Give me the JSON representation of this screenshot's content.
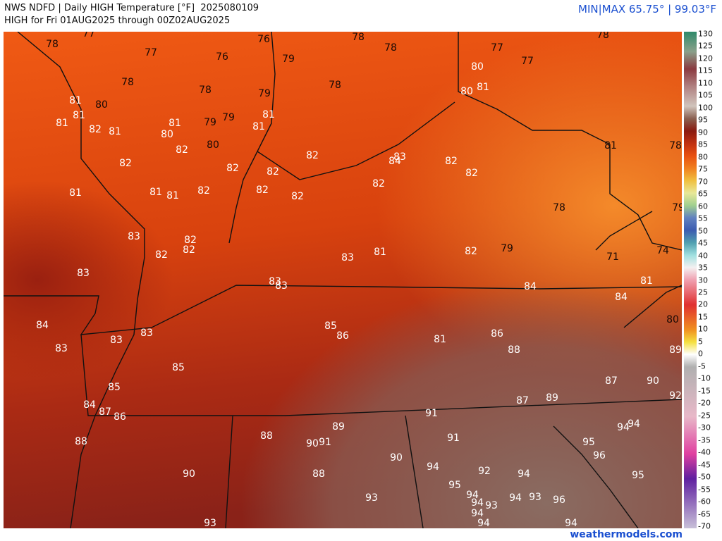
{
  "header": {
    "title": "NWS NDFD | Daily HIGH Temperature [°F]  2025080109",
    "subtitle": "HIGH for Fri 01AUG2025 through 00Z02AUG2025",
    "minmax": "MIN|MAX 65.75° | 99.03°F"
  },
  "map": {
    "labels": [
      78,
      77,
      77,
      76,
      76,
      79,
      78,
      78,
      78,
      77,
      77,
      80,
      80,
      81,
      78,
      78,
      79,
      78,
      81,
      80,
      81,
      81,
      82,
      81,
      80,
      81,
      79,
      79,
      81,
      81,
      80,
      82,
      82,
      82,
      84,
      83,
      82,
      82,
      82,
      82,
      82,
      82,
      82,
      81,
      81,
      81,
      82,
      81,
      78,
      78,
      79,
      83,
      82,
      82,
      82,
      83,
      81,
      82,
      79,
      71,
      74,
      83,
      83,
      83,
      84,
      81,
      84,
      80,
      84,
      85,
      86,
      83,
      83,
      83,
      81,
      86,
      88,
      89,
      85,
      87,
      90,
      85,
      92,
      84,
      87,
      86,
      87,
      89,
      91,
      94,
      94,
      88,
      88,
      89,
      90,
      91,
      91,
      95,
      96,
      90,
      94,
      92,
      94,
      95,
      90,
      88,
      95,
      94,
      94,
      93,
      94,
      93,
      96,
      93,
      94,
      94,
      93,
      94
    ]
  },
  "colorbar": {
    "labels": [
      130,
      125,
      120,
      115,
      110,
      105,
      100,
      95,
      90,
      85,
      80,
      75,
      70,
      65,
      60,
      55,
      50,
      45,
      40,
      35,
      30,
      25,
      20,
      15,
      10,
      5,
      0,
      -5,
      -10,
      -15,
      -20,
      -25,
      -30,
      -35,
      -40,
      -45,
      -50,
      -55,
      -60,
      -65,
      -70
    ]
  },
  "footer": {
    "credit": "weathermodels.com"
  }
}
